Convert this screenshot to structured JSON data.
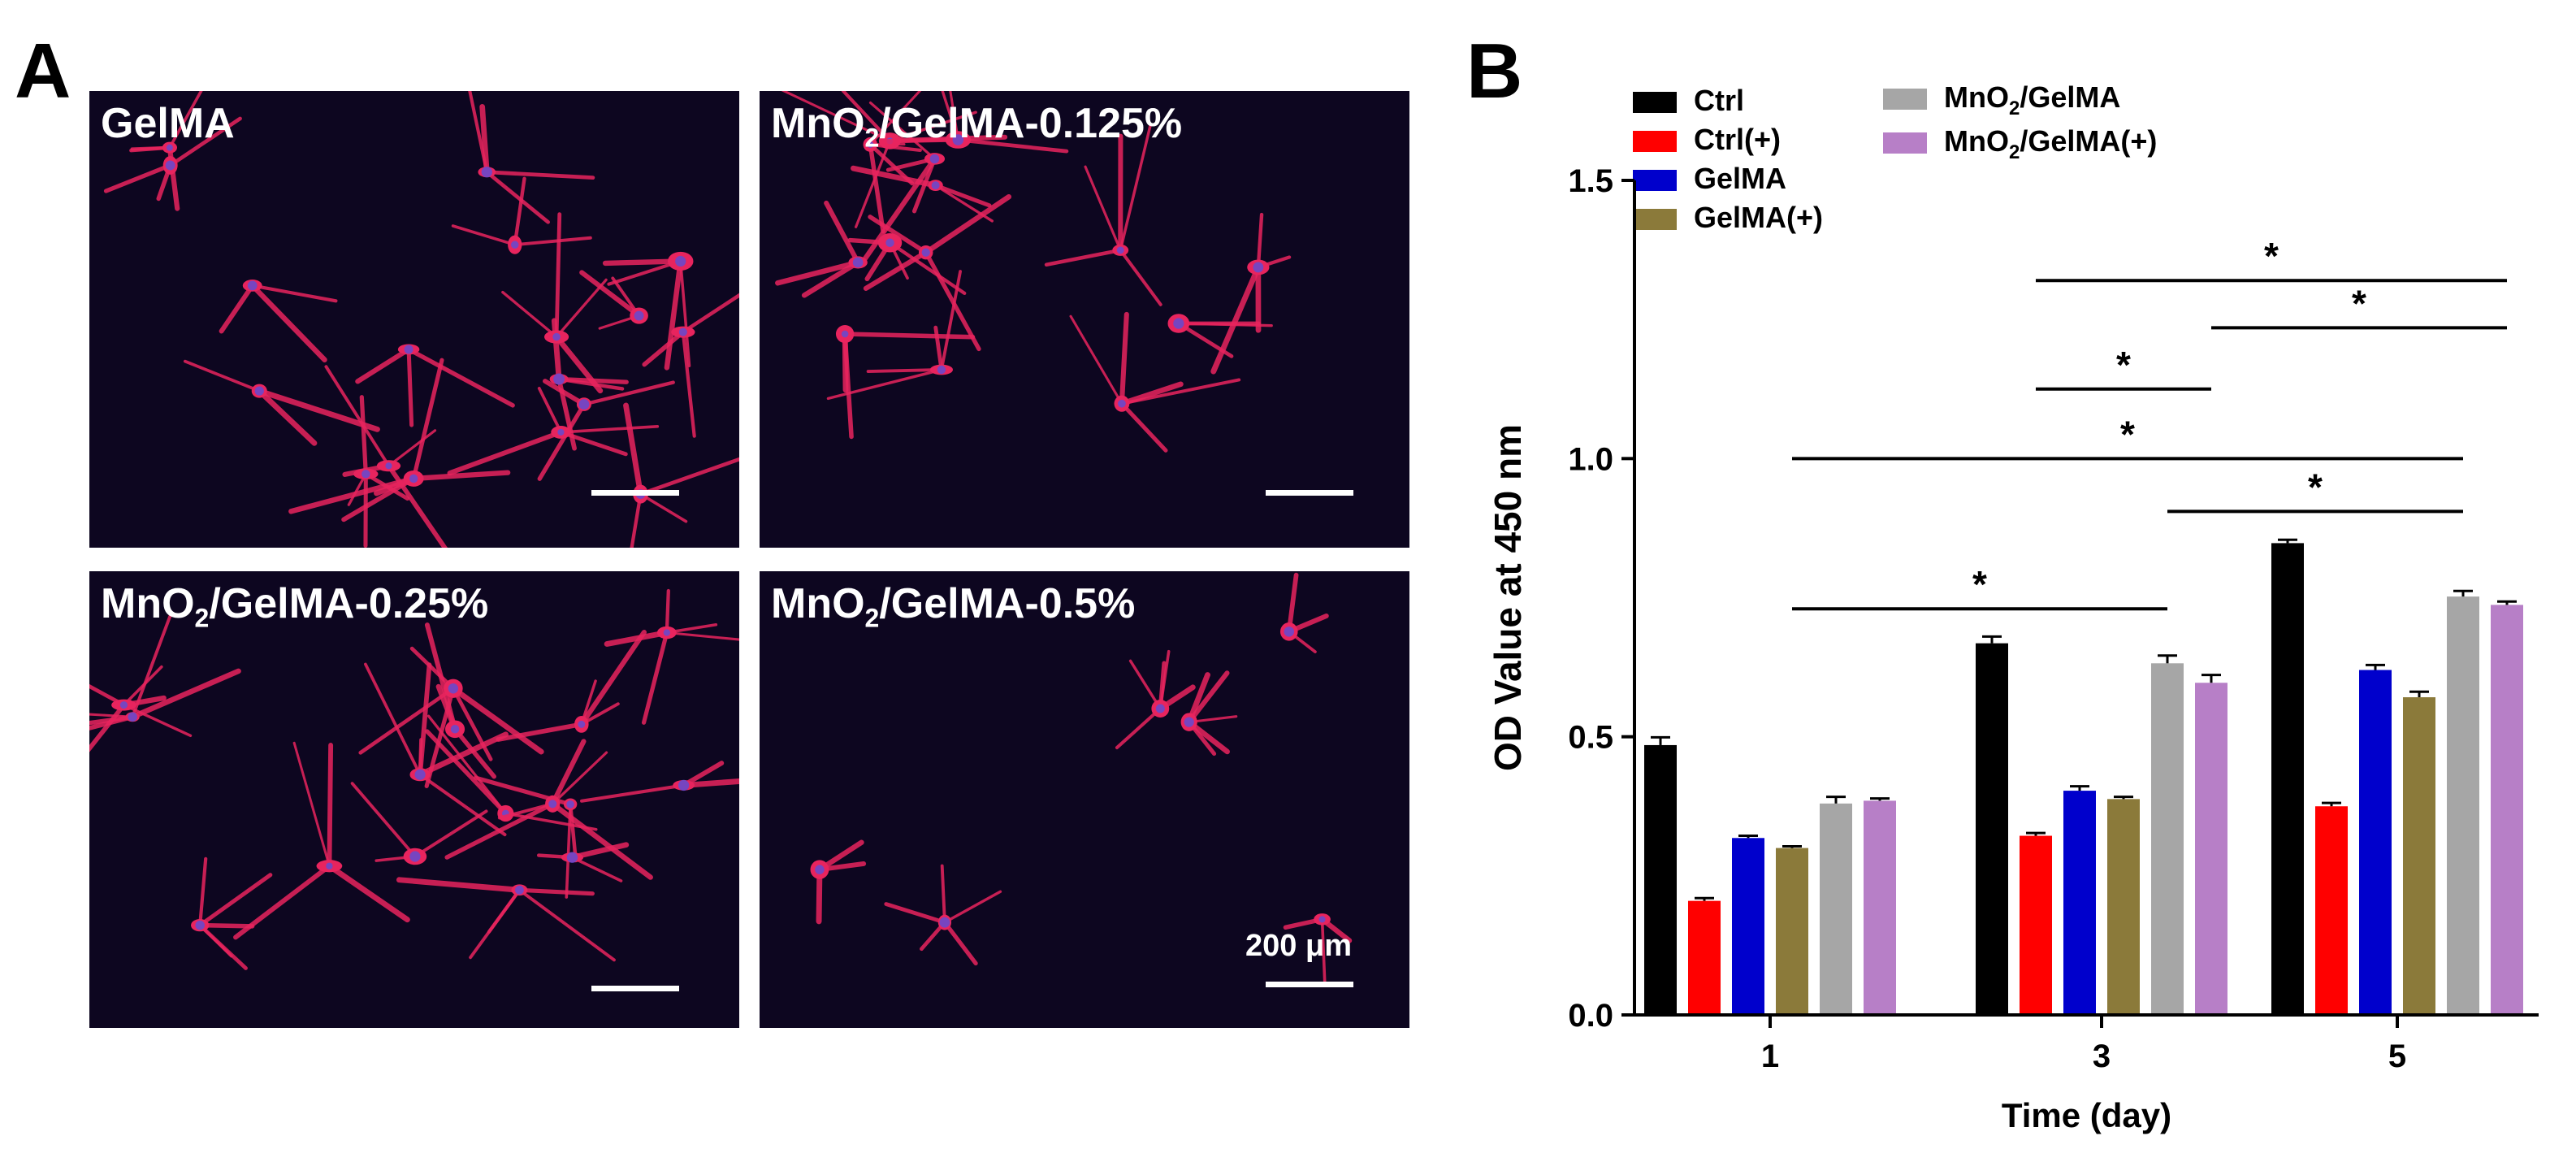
{
  "panels": {
    "a_label": "A",
    "b_label": "B"
  },
  "micrographs": [
    {
      "prefix": "GelMA",
      "sub": "",
      "suffix": ""
    },
    {
      "prefix": "MnO",
      "sub": "2",
      "suffix": "/GelMA-0.125%"
    },
    {
      "prefix": "MnO",
      "sub": "2",
      "suffix": "/GelMA-0.25%"
    },
    {
      "prefix": "MnO",
      "sub": "2",
      "suffix": "/GelMA-0.5%"
    }
  ],
  "scale_bar_label": "200 μm",
  "colors": {
    "micrograph_bg": "#0d0620",
    "cell": "#e8245e",
    "nucleus": "#5a4ed8"
  },
  "chart_data": {
    "type": "bar",
    "xlabel": "Time (day)",
    "ylabel": "OD Value at 450 nm",
    "ylim": [
      0,
      1.5
    ],
    "yticks": [
      "0.0",
      "0.5",
      "1.0",
      "1.5"
    ],
    "categories": [
      "1",
      "3",
      "5"
    ],
    "series": [
      {
        "name": "Ctrl",
        "color": "#000000",
        "values": [
          0.485,
          0.668,
          0.848
        ],
        "errors": [
          0.014,
          0.012,
          0.006
        ]
      },
      {
        "name": "Ctrl(+)",
        "color": "#ff0000",
        "values": [
          0.205,
          0.322,
          0.375
        ],
        "errors": [
          0.005,
          0.005,
          0.006
        ]
      },
      {
        "name": "GelMA",
        "color": "#0000cc",
        "values": [
          0.318,
          0.403,
          0.62
        ],
        "errors": [
          0.004,
          0.008,
          0.009
        ]
      },
      {
        "name": "GelMA(+)",
        "color": "#8b7a3a",
        "values": [
          0.3,
          0.388,
          0.571
        ],
        "errors": [
          0.003,
          0.004,
          0.01
        ]
      },
      {
        "name": "MnO2/GelMA",
        "color": "#a6a6a6",
        "values": [
          0.38,
          0.632,
          0.752
        ],
        "errors": [
          0.012,
          0.014,
          0.01
        ]
      },
      {
        "name": "MnO2/GelMA(+)",
        "color": "#b77fc7",
        "values": [
          0.385,
          0.597,
          0.737
        ],
        "errors": [
          0.004,
          0.014,
          0.006
        ]
      }
    ],
    "legend": [
      {
        "prefix": "Ctrl",
        "sub": "",
        "suffix": ""
      },
      {
        "prefix": "Ctrl",
        "sub": "",
        "suffix": "(+)"
      },
      {
        "prefix": "GelMA",
        "sub": "",
        "suffix": ""
      },
      {
        "prefix": "GelMA",
        "sub": "",
        "suffix": "(+)"
      },
      {
        "prefix": "MnO",
        "sub": "2",
        "suffix": "/GelMA"
      },
      {
        "prefix": "MnO",
        "sub": "2",
        "suffix": "/GelMA(+)"
      }
    ],
    "significance": [
      {
        "from": "GelMA(+) day 1",
        "to": "MnO2/GelMA day 3",
        "label": "*"
      },
      {
        "from": "MnO2/GelMA day 3",
        "to": "MnO2/GelMA day 5",
        "label": "*"
      },
      {
        "from": "GelMA(+) day 1",
        "to": "MnO2/GelMA day 5",
        "label": "*"
      },
      {
        "from": "Ctrl(+) day 3",
        "to": "MnO2/GelMA(+) day 3",
        "label": "*"
      },
      {
        "from": "MnO2/GelMA(+) day 3",
        "to": "MnO2/GelMA(+) day 5",
        "label": "*"
      },
      {
        "from": "Ctrl(+) day 3",
        "to": "MnO2/GelMA(+) day 5",
        "label": "*"
      }
    ]
  }
}
